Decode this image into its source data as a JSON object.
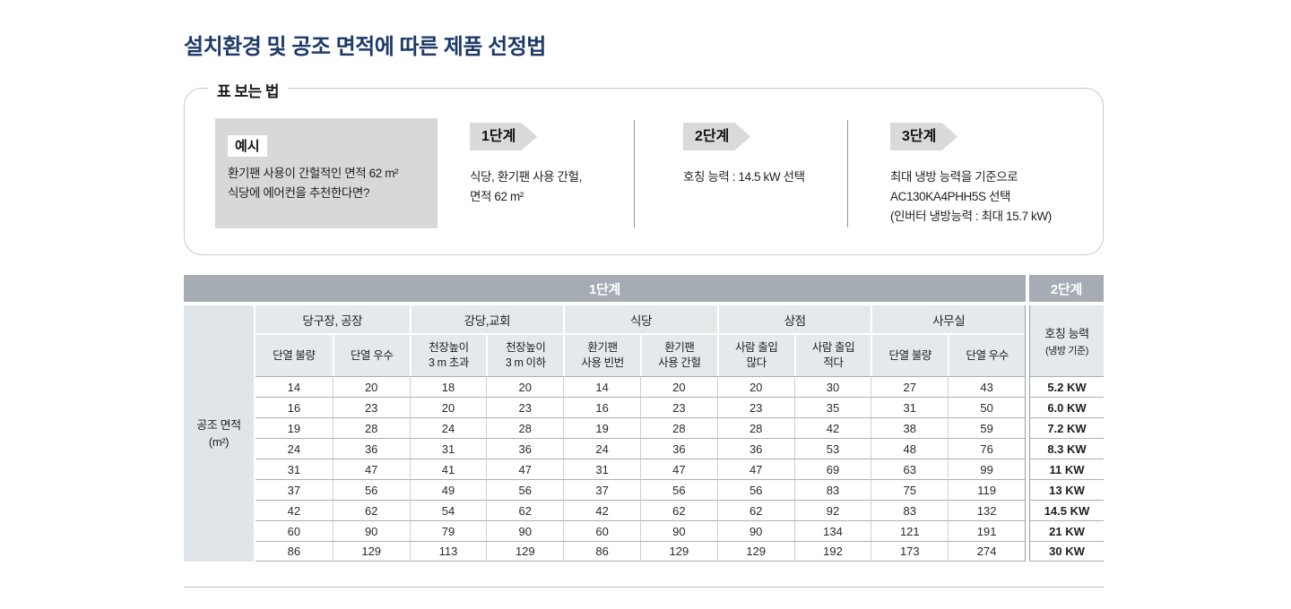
{
  "page": {
    "title": "설치환경 및 공조 면적에 따른 제품 선정법"
  },
  "theme": {
    "title_color": "#1d3a69",
    "banner_bg": "#a5acb4",
    "banner_text": "#ffffff",
    "header_cell_bg": "#e4e9ec",
    "row_header_bg": "#dfe5e9",
    "example_panel_bg": "#d8d8d8",
    "badge_bg": "#dadada"
  },
  "guide_box": {
    "label": "표 보는 법",
    "example": {
      "badge": "예시",
      "text": "환기팬 사용이 간헐적인 면적 62 m²\n식당에 에어컨을 추천한다면?"
    },
    "steps": [
      {
        "badge": "1단계",
        "text": "식당, 환기팬 사용 간헐,\n면적 62 m²"
      },
      {
        "badge": "2단계",
        "text": "호칭 능력 : 14.5 kW 선택"
      },
      {
        "badge": "3단계",
        "text": "최대 냉방 능력을 기준으로\nAC130KA4PHH5S 선택\n(인버터 냉방능력 : 최대 15.7 kW)"
      }
    ]
  },
  "table": {
    "step1_banner": "1단계",
    "step2_banner": "2단계",
    "row_header": {
      "line1": "공조 면적",
      "line2": "(m²)"
    },
    "groups": [
      {
        "label": "당구장, 공장",
        "cols": [
          "단열 불량",
          "단열 우수"
        ]
      },
      {
        "label": "강당,교회",
        "cols": [
          "천장높이\n3 m 초과",
          "천장높이\n3 m 이하"
        ]
      },
      {
        "label": "식당",
        "cols": [
          "환기팬\n사용 빈번",
          "환기팬\n사용 간헐"
        ]
      },
      {
        "label": "상점",
        "cols": [
          "사람 출입\n많다",
          "사람 출입\n적다"
        ]
      },
      {
        "label": "사무실",
        "cols": [
          "단열 불량",
          "단열 우수"
        ]
      }
    ],
    "capacity_header": {
      "line1": "호칭 능력",
      "line2": "(냉방 기준)"
    },
    "rows": [
      {
        "values": [
          14,
          20,
          18,
          20,
          14,
          20,
          20,
          30,
          27,
          43
        ],
        "capacity": "5.2 KW"
      },
      {
        "values": [
          16,
          23,
          20,
          23,
          16,
          23,
          23,
          35,
          31,
          50
        ],
        "capacity": "6.0 KW"
      },
      {
        "values": [
          19,
          28,
          24,
          28,
          19,
          28,
          28,
          42,
          38,
          59
        ],
        "capacity": "7.2 KW"
      },
      {
        "values": [
          24,
          36,
          31,
          36,
          24,
          36,
          36,
          53,
          48,
          76
        ],
        "capacity": "8.3 KW"
      },
      {
        "values": [
          31,
          47,
          41,
          47,
          31,
          47,
          47,
          69,
          63,
          99
        ],
        "capacity": "11 KW"
      },
      {
        "values": [
          37,
          56,
          49,
          56,
          37,
          56,
          56,
          83,
          75,
          119
        ],
        "capacity": "13 KW"
      },
      {
        "values": [
          42,
          62,
          54,
          62,
          42,
          62,
          62,
          92,
          83,
          132
        ],
        "capacity": "14.5 KW"
      },
      {
        "values": [
          60,
          90,
          79,
          90,
          60,
          90,
          90,
          134,
          121,
          191
        ],
        "capacity": "21 KW"
      },
      {
        "values": [
          86,
          129,
          113,
          129,
          86,
          129,
          129,
          192,
          173,
          274
        ],
        "capacity": "30 KW"
      }
    ]
  }
}
